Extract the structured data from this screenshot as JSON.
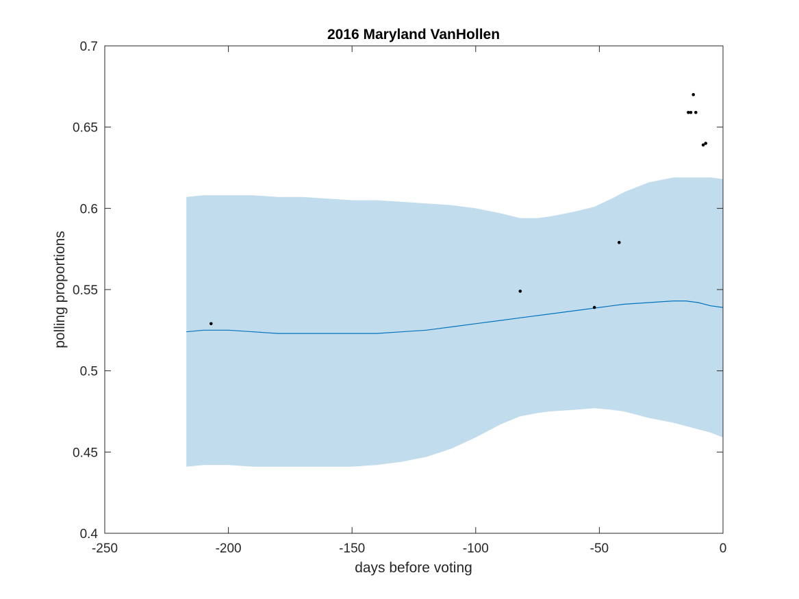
{
  "chart_data": {
    "type": "line",
    "title": "2016 Maryland VanHollen",
    "xlabel": "days before voting",
    "ylabel": "polling proportions",
    "xlim": [
      -250,
      0
    ],
    "ylim": [
      0.4,
      0.7
    ],
    "xticks": [
      -250,
      -200,
      -150,
      -100,
      -50,
      0
    ],
    "yticks": [
      0.4,
      0.45,
      0.5,
      0.55,
      0.6,
      0.65,
      0.7
    ],
    "xtick_labels": [
      "-250",
      "-200",
      "-150",
      "-100",
      "-50",
      "0"
    ],
    "ytick_labels": [
      "0.4",
      "0.45",
      "0.5",
      "0.55",
      "0.6",
      "0.65",
      "0.7"
    ],
    "grid": false,
    "colors": {
      "band": "#c1dcec",
      "mean_line": "#0072bd",
      "points": "#000000",
      "axes": "#262626"
    },
    "band": {
      "x": [
        -217,
        -210,
        -200,
        -190,
        -180,
        -170,
        -160,
        -150,
        -140,
        -130,
        -120,
        -110,
        -100,
        -90,
        -82,
        -75,
        -70,
        -60,
        -52,
        -45,
        -40,
        -30,
        -20,
        -15,
        -10,
        -5,
        0
      ],
      "upper": [
        0.607,
        0.608,
        0.608,
        0.608,
        0.607,
        0.607,
        0.606,
        0.605,
        0.605,
        0.604,
        0.603,
        0.602,
        0.6,
        0.597,
        0.594,
        0.594,
        0.595,
        0.598,
        0.601,
        0.606,
        0.61,
        0.616,
        0.619,
        0.619,
        0.619,
        0.619,
        0.618
      ],
      "lower": [
        0.441,
        0.442,
        0.442,
        0.441,
        0.441,
        0.441,
        0.441,
        0.441,
        0.442,
        0.444,
        0.447,
        0.452,
        0.459,
        0.467,
        0.472,
        0.474,
        0.475,
        0.476,
        0.477,
        0.476,
        0.475,
        0.471,
        0.468,
        0.466,
        0.464,
        0.462,
        0.459
      ]
    },
    "series": [
      {
        "x": [
          -217,
          -210,
          -200,
          -190,
          -180,
          -170,
          -160,
          -150,
          -140,
          -130,
          -120,
          -110,
          -100,
          -90,
          -80,
          -70,
          -60,
          -50,
          -40,
          -30,
          -20,
          -15,
          -10,
          -5,
          0
        ],
        "values": [
          0.524,
          0.525,
          0.525,
          0.524,
          0.523,
          0.523,
          0.523,
          0.523,
          0.523,
          0.524,
          0.525,
          0.527,
          0.529,
          0.531,
          0.533,
          0.535,
          0.537,
          0.539,
          0.541,
          0.542,
          0.543,
          0.543,
          0.542,
          0.54,
          0.539
        ]
      }
    ],
    "points": {
      "x": [
        -207,
        -82,
        -52,
        -42,
        -14,
        -13,
        -12,
        -11,
        -8,
        -7
      ],
      "y": [
        0.529,
        0.549,
        0.539,
        0.579,
        0.659,
        0.659,
        0.67,
        0.659,
        0.639,
        0.64
      ]
    }
  }
}
